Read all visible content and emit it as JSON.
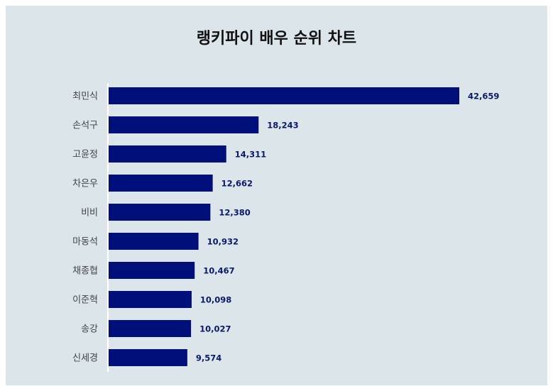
{
  "title": "랭키파이 배우 순위 차트",
  "chart_data": {
    "type": "bar",
    "orientation": "horizontal",
    "title": "랭키파이 배우 순위 차트",
    "categories": [
      "최민식",
      "손석구",
      "고윤정",
      "차은우",
      "비비",
      "마동석",
      "채종협",
      "이준혁",
      "송강",
      "신세경"
    ],
    "values": [
      42659,
      18243,
      14311,
      12662,
      12380,
      10932,
      10467,
      10098,
      10027,
      9574
    ],
    "value_labels": [
      "42,659",
      "18,243",
      "14,311",
      "12,662",
      "12,380",
      "10,932",
      "10,467",
      "10,098",
      "10,027",
      "9,574"
    ],
    "xlim": [
      0,
      42659
    ],
    "grid": false,
    "legend": "none",
    "bar_color": "#000f7a",
    "background": "#dce5e9"
  }
}
